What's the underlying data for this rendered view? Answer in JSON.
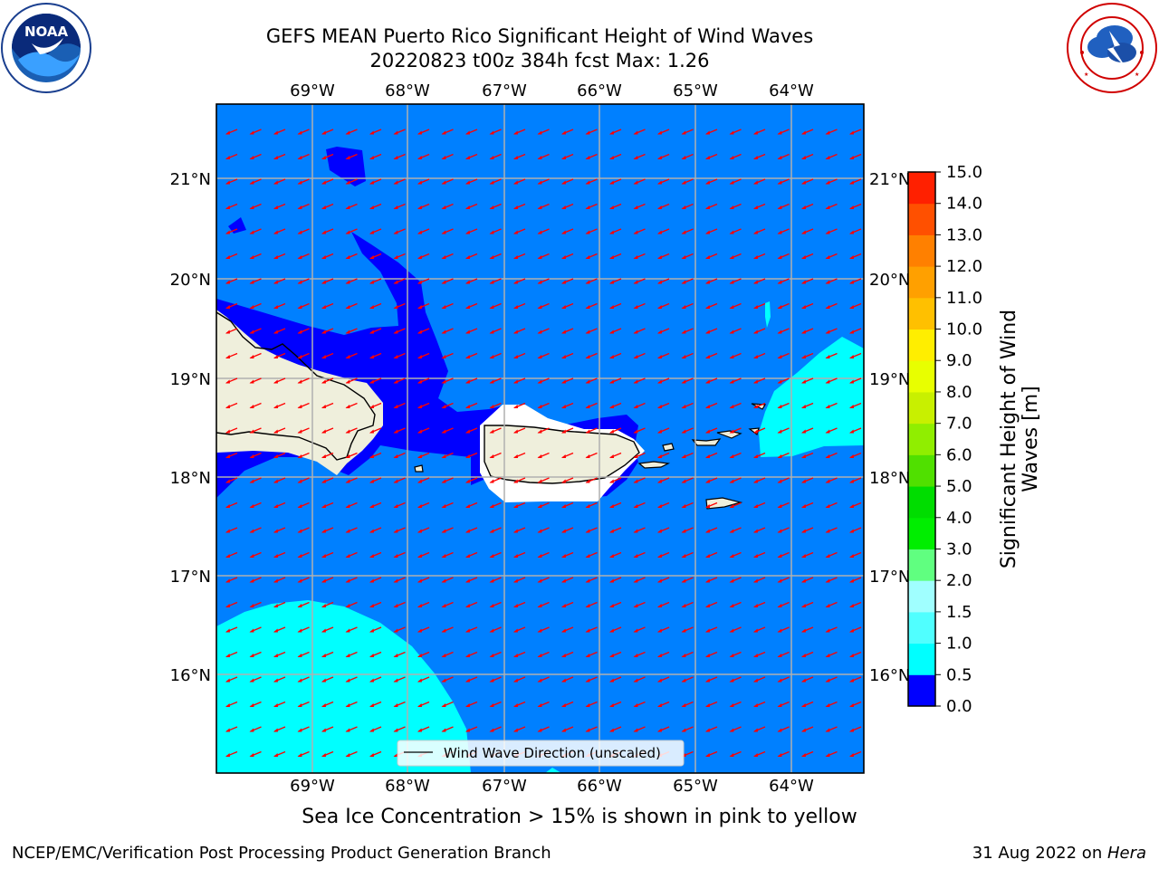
{
  "header": {
    "title_line1": "GEFS MEAN Puerto Rico Significant Height of Wind Waves",
    "title_line2": "20220823 t00z 384h fcst   Max: 1.26"
  },
  "logos": {
    "noaa": {
      "text": "NOAA",
      "ring_text": "NATIONAL OCEANIC AND ATMOSPHERIC ADMINISTRATION · U.S. DEPARTMENT OF COMMERCE"
    },
    "nws": {
      "ring_text": "NATIONAL WEATHER SERVICE"
    }
  },
  "map": {
    "lon_labels": [
      "69°W",
      "68°W",
      "67°W",
      "66°W",
      "65°W",
      "64°W"
    ],
    "lat_labels": [
      "21°N",
      "20°N",
      "19°N",
      "18°N",
      "17°N",
      "16°N"
    ],
    "legend_label": "Wind Wave Direction (unscaled)",
    "colors": {
      "level_0_0_5": "#0000ff",
      "level_0_5_1_0": "#0080ff",
      "level_1_0_1_5": "#00ffff",
      "land": "#efefdc",
      "arrows": "#ff0000",
      "gridlines": "#b0b0b0"
    },
    "arrow_direction": "toward west-southwest",
    "max_value": 1.26
  },
  "colorbar": {
    "label": "Significant Height of Wind Waves [m]",
    "ticks": [
      "15.0",
      "14.0",
      "13.0",
      "12.0",
      "11.0",
      "10.0",
      "9.0",
      "8.0",
      "7.0",
      "6.0",
      "5.0",
      "4.0",
      "3.0",
      "2.0",
      "1.5",
      "1.0",
      "0.5",
      "0.0"
    ],
    "colors": [
      "#ff0000",
      "#ff2000",
      "#ff5000",
      "#ff8000",
      "#ffa000",
      "#ffc000",
      "#ffee00",
      "#e8ff00",
      "#c8f000",
      "#90ee00",
      "#50e000",
      "#00dd00",
      "#00ee00",
      "#60ff80",
      "#a0ffff",
      "#50ffff",
      "#00ffff",
      "#0080ff",
      "#0000ff"
    ]
  },
  "sea_ice_note": "Sea Ice Concentration > 15% is shown in pink to yellow",
  "footer": {
    "left": "NCEP/EMC/Verification Post Processing Product Generation Branch",
    "right_prefix": "31 Aug 2022 on ",
    "right_machine": "Hera"
  }
}
